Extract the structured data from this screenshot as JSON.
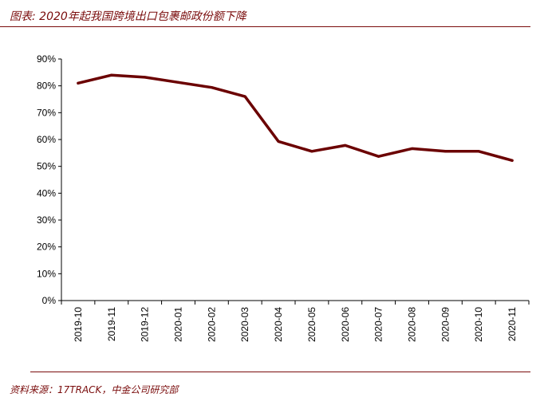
{
  "header": {
    "title": "图表: 2020年起我国跨境出口包裹邮政份额下降"
  },
  "footer": {
    "source": "资料来源：17TRACK，中金公司研究部"
  },
  "colors": {
    "line": "#6b0000",
    "accent": "#7a0c0c",
    "axis": "#000000"
  },
  "chart_data": {
    "type": "line",
    "categories": [
      "2019-10",
      "2019-11",
      "2019-12",
      "2020-01",
      "2020-02",
      "2020-03",
      "2020-04",
      "2020-05",
      "2020-06",
      "2020-07",
      "2020-08",
      "2020-09",
      "2020-10",
      "2020-11"
    ],
    "series": [
      {
        "values": [
          81,
          84,
          83.2,
          81.3,
          79.4,
          76,
          59.3,
          55.6,
          57.8,
          53.7,
          56.6,
          55.6,
          55.6,
          52.2
        ]
      }
    ],
    "y_ticks": [
      "0%",
      "10%",
      "20%",
      "30%",
      "40%",
      "50%",
      "60%",
      "70%",
      "80%",
      "90%"
    ],
    "ylim": [
      0,
      90
    ],
    "grid": false,
    "legend": "none"
  }
}
